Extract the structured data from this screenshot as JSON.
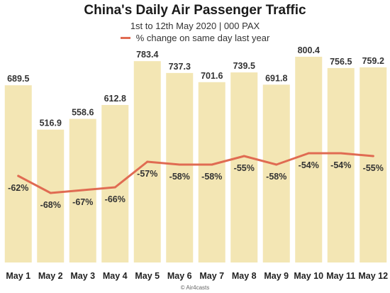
{
  "chart_data": {
    "type": "bar",
    "title": "China's Daily Air Passenger Traffic",
    "subtitle": "1st to 12th May 2020  |  000 PAX",
    "categories": [
      "May 1",
      "May 2",
      "May 3",
      "May 4",
      "May 5",
      "May 6",
      "May 7",
      "May 8",
      "May 9",
      "May 10",
      "May 11",
      "May 12"
    ],
    "series": [
      {
        "type": "bar",
        "values": [
          689.5,
          516.9,
          558.6,
          612.8,
          783.4,
          737.3,
          701.6,
          739.5,
          691.8,
          800.4,
          756.5,
          759.2
        ],
        "labels": [
          "689.5",
          "516.9",
          "558.6",
          "612.8",
          "783.4",
          "737.3",
          "701.6",
          "739.5",
          "691.8",
          "800.4",
          "756.5",
          "759.2"
        ],
        "color": "#f3e6b4"
      },
      {
        "type": "line",
        "name": "% change on same day last year",
        "values": [
          -62,
          -68,
          -67,
          -66,
          -57,
          -58,
          -58,
          -55,
          -58,
          -54,
          -54,
          -55
        ],
        "labels": [
          "-62%",
          "-68%",
          "-67%",
          "-66%",
          "-57%",
          "-58%",
          "-58%",
          "-55%",
          "-58%",
          "-54%",
          "-54%",
          "-55%"
        ],
        "color": "#e06b52"
      }
    ],
    "grid": false,
    "legend_position": "top-center",
    "credit": "© Air4casts"
  }
}
